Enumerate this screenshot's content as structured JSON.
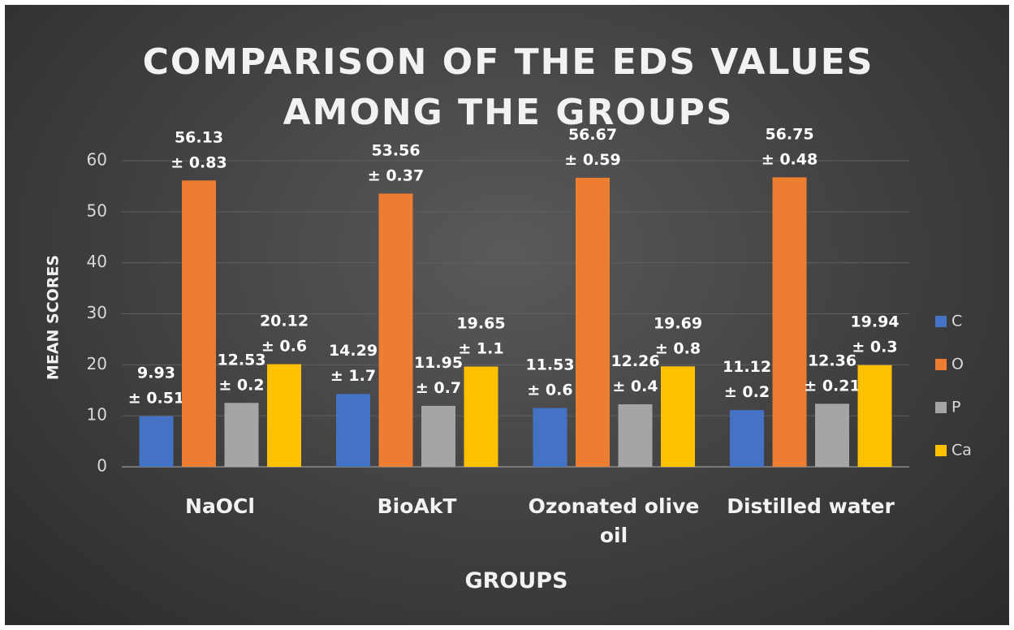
{
  "chart_data": {
    "type": "bar",
    "title": "COMPARISON OF THE EDS VALUES AMONG THE GROUPS",
    "x_label": "GROUPS",
    "y_label": "MEAN SCORES",
    "categories": [
      "NaOCl",
      "BioAkT",
      "Ozonated olive oil",
      "Distilled water"
    ],
    "series": [
      {
        "name": "C",
        "color": "#4472c4",
        "values": [
          9.93,
          14.29,
          11.53,
          11.12
        ],
        "value_labels": [
          "9.93 ±  0.51",
          "14.29 ±  1.7",
          "11.53 ± 0.6",
          "11.12 ± 0.2"
        ]
      },
      {
        "name": "O",
        "color": "#ed7d31",
        "values": [
          56.13,
          53.56,
          56.67,
          56.75
        ],
        "value_labels": [
          "56.13 ± 0.83",
          "53.56 ± 0.37",
          "56.67 ± 0.59",
          "56.75 ± 0.48"
        ]
      },
      {
        "name": "P",
        "color": "#a5a5a5",
        "values": [
          12.53,
          11.95,
          12.26,
          12.36
        ],
        "value_labels": [
          "12.53 ± 0.2",
          "11.95 ± 0.7",
          "12.26 ± 0.4",
          "12.36 ± 0.21"
        ]
      },
      {
        "name": "Ca",
        "color": "#ffc000",
        "values": [
          20.12,
          19.65,
          19.69,
          19.94
        ],
        "value_labels": [
          "20.12 ± 0.6",
          "19.65 ± 1.1",
          "19.69 ± 0.8",
          "19.94 ± 0.3"
        ]
      }
    ],
    "ylim": [
      0,
      60
    ],
    "yticks": [
      0,
      10,
      20,
      30,
      40,
      50,
      60
    ],
    "grid": true,
    "legend": "right"
  }
}
